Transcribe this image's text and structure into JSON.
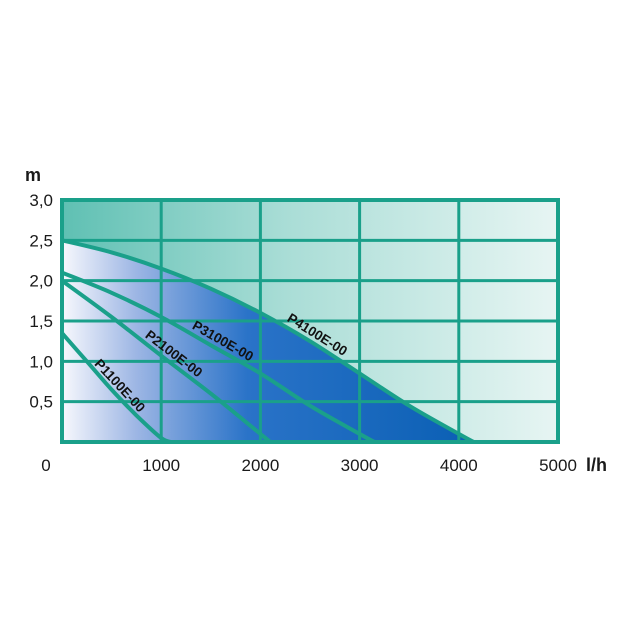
{
  "chart_data": {
    "type": "area",
    "xlabel": "l/h",
    "ylabel": "m",
    "xlim": [
      0,
      5000
    ],
    "ylim": [
      0,
      3.0
    ],
    "x_ticks": [
      {
        "value": 0,
        "label": "0"
      },
      {
        "value": 1000,
        "label": "1000"
      },
      {
        "value": 2000,
        "label": "2000"
      },
      {
        "value": 3000,
        "label": "3000"
      },
      {
        "value": 4000,
        "label": "4000"
      },
      {
        "value": 5000,
        "label": "5000"
      }
    ],
    "y_ticks": [
      {
        "value": 0.5,
        "label": "0,5"
      },
      {
        "value": 1.0,
        "label": "1,0"
      },
      {
        "value": 1.5,
        "label": "1,5"
      },
      {
        "value": 2.0,
        "label": "2,0"
      },
      {
        "value": 2.5,
        "label": "2,5"
      },
      {
        "value": 3.0,
        "label": "3,0"
      }
    ],
    "grid": true,
    "colors": {
      "frame": "#1aa08a",
      "fill_light": "#f4f6fc",
      "fill_dark": "#0a5fb4",
      "background": "#e6f3f1"
    },
    "series": [
      {
        "name": "P1100E-00",
        "x": [
          0,
          250,
          500,
          750,
          1000,
          1100
        ],
        "y": [
          1.35,
          1.0,
          0.65,
          0.33,
          0.05,
          0
        ]
      },
      {
        "name": "P2100E-00",
        "x": [
          0,
          500,
          1000,
          1500,
          2000,
          2100
        ],
        "y": [
          2.0,
          1.55,
          1.07,
          0.6,
          0.1,
          0
        ]
      },
      {
        "name": "P3100E-00",
        "x": [
          0,
          500,
          1000,
          1500,
          2000,
          2500,
          3000,
          3150
        ],
        "y": [
          2.1,
          1.85,
          1.55,
          1.2,
          0.85,
          0.45,
          0.1,
          0
        ]
      },
      {
        "name": "P4100E-00",
        "x": [
          0,
          500,
          1000,
          1500,
          2000,
          2500,
          3000,
          3500,
          4000,
          4150
        ],
        "y": [
          2.5,
          2.35,
          2.15,
          1.9,
          1.6,
          1.25,
          0.85,
          0.45,
          0.1,
          0
        ]
      }
    ]
  }
}
